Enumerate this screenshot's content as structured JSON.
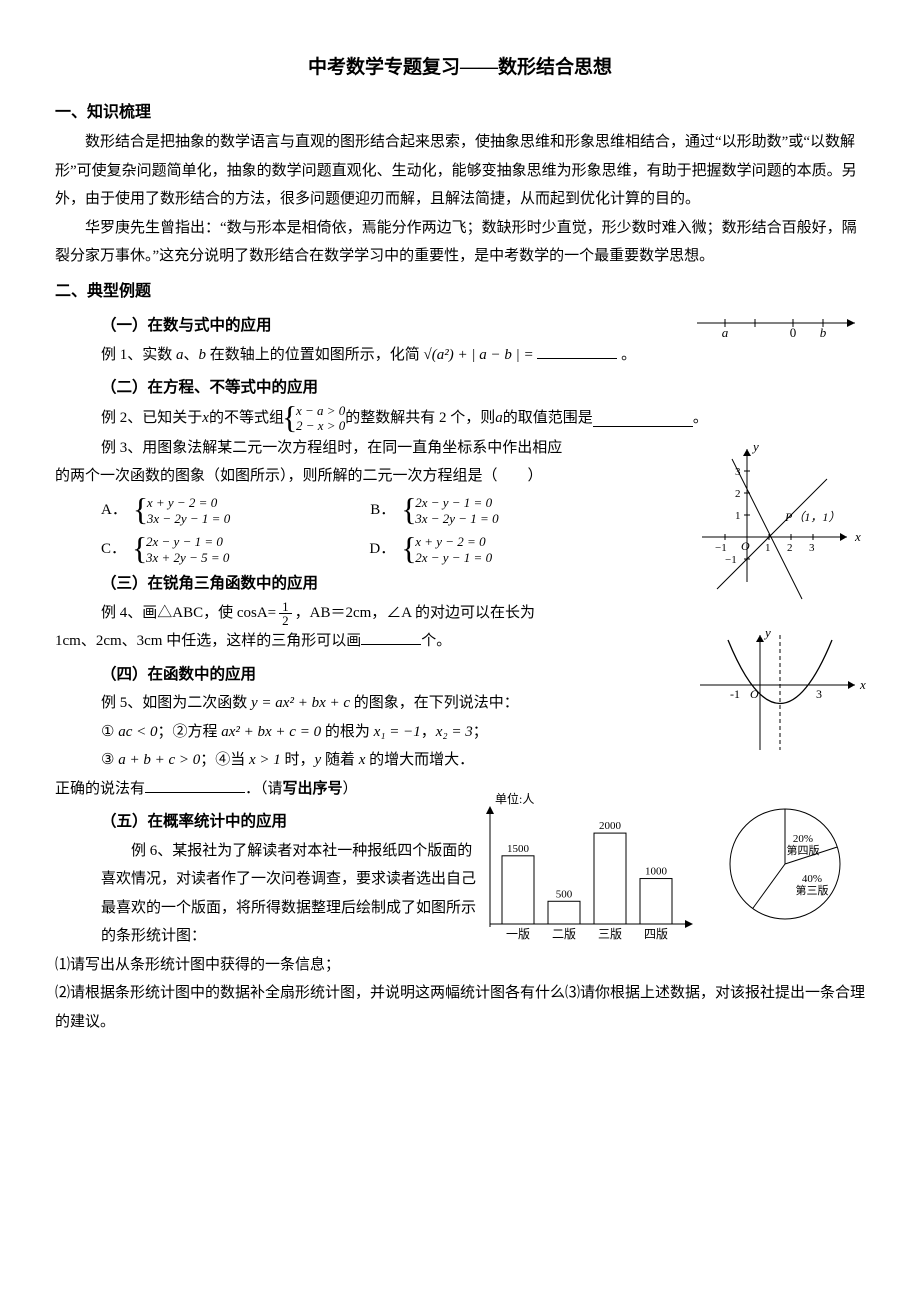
{
  "title": "中考数学专题复习——数形结合思想",
  "sections": {
    "s1": {
      "heading": "一、知识梳理",
      "p1": "数形结合是把抽象的数学语言与直观的图形结合起来思索，使抽象思维和形象思维相结合，通过“以形助数”或“以数解形”可使复杂问题简单化，抽象的数学问题直观化、生动化，能够变抽象思维为形象思维，有助于把握数学问题的本质。另外，由于使用了数形结合的方法，很多问题便迎刃而解，且解法简捷，从而起到优化计算的目的。",
      "p2": "华罗庚先生曾指出：“数与形本是相倚依，焉能分作两边飞；数缺形时少直觉，形少数时难入微；数形结合百般好，隔裂分家万事休。”这充分说明了数形结合在数学学习中的重要性，是中考数学的一个最重要数学思想。"
    },
    "s2_heading": "二、典型例题",
    "sub1": {
      "heading": "（一）在数与式中的应用",
      "ex1_prefix": "例 1、实数 ",
      "ex1_mid": "、",
      "ex1_text": " 在数轴上的位置如图所示，化简 ",
      "ex1_expr": "√(a²) + | a − b | =",
      "ex1_end": "。",
      "numberline": {
        "a_label": "a",
        "zero": "0",
        "b_label": "b"
      }
    },
    "sub2": {
      "heading": "（二）在方程、不等式中的应用",
      "ex2_pre": "例 2、已知关于 ",
      "ex2_mid": " 的不等式组 ",
      "ex2_sys1": "x − a > 0",
      "ex2_sys2": "2 − x > 0",
      "ex2_post1": " 的整数解共有 2 个，则 ",
      "ex2_post2": " 的取值范围是",
      "ex2_end": "。",
      "ex3_line": "例 3、用图象法解某二元一次方程组时，在同一直角坐标系中作出相应",
      "ex3_line2": "的两个一次函数的图象（如图所示），则所解的二元一次方程组是（　　）",
      "optA": "A．",
      "optA_s1": "x + y − 2 = 0",
      "optA_s2": "3x − 2y − 1 = 0",
      "optB": "B．",
      "optB_s1": "2x − y − 1 = 0",
      "optB_s2": "3x − 2y − 1 = 0",
      "optC": "C．",
      "optC_s1": "2x − y − 1 = 0",
      "optC_s2": "3x + 2y − 5 = 0",
      "optD": "D．",
      "optD_s1": "x + y − 2 = 0",
      "optD_s2": "2x − y − 1 = 0",
      "graph": {
        "axis_color": "#000",
        "y_lab": "y",
        "x_lab": "x",
        "P_label": "P（1，1）",
        "ticks_x": [
          "−1",
          "1",
          "2",
          "3"
        ],
        "ticks_y": [
          "−1",
          "1",
          "2",
          "3"
        ],
        "O": "O"
      }
    },
    "sub3": {
      "heading": "（三）在锐角三角函数中的应用",
      "ex4_a": "例 4、画△ABC，使 cosA= ",
      "ex4_frac_num": "1",
      "ex4_frac_den": "2",
      "ex4_b": "，AB＝2cm，∠A 的对边可以在长为",
      "ex4_line2_a": "1cm、2cm、3cm 中任选，这样的三角形可以画",
      "ex4_line2_b": "个。"
    },
    "sub4": {
      "heading": "（四）在函数中的应用",
      "ex5_a": "例 5、如图为二次函数 ",
      "ex5_expr": "y = ax² + bx + c",
      "ex5_b": " 的图象，在下列说法中：",
      "cond1_a": "① ",
      "cond1_expr": "ac < 0",
      "cond1_b": "；②方程 ",
      "cond1_expr2": "ax² + bx + c = 0",
      "cond1_c": " 的根为 ",
      "cond1_x1": "x₁ = −1",
      "cond1_d": "，",
      "cond1_x2": "x₂ = 3",
      "cond1_e": "；",
      "cond2_a": "③ ",
      "cond2_expr": "a + b + c > 0",
      "cond2_b": "；④当 ",
      "cond2_xgt": "x > 1",
      "cond2_c": " 时，",
      "cond2_d": " 随着 ",
      "cond2_e": " 的增大而增大．",
      "final_a": "正确的说法有",
      "final_b": "．（请",
      "final_bold": "写出序号",
      "final_c": "）",
      "parabola": {
        "x_lab": "x",
        "y_lab": "y",
        "x_ticks": [
          "-1",
          "3"
        ],
        "O": "O",
        "axis_color": "#000",
        "curve_color": "#000",
        "dash": "4,3"
      }
    },
    "sub5": {
      "heading": "（五）在概率统计中的应用",
      "ex6_p1": "例 6、某报社为了解读者对本社一种报纸四个版面的喜欢情况，对读者作了一次问卷调查，要求读者选出自己最喜欢的一个版面，将所得数据整理后绘制成了如图所示的条形统计图：",
      "q1": "⑴请写出从条形统计图中获得的一条信息；",
      "q2": "⑵请根据条形统计图中的数据补全扇形统计图，并说明这两幅统计图各有什么⑶请你根据上述数据，对该报社提出一条合理的建议。",
      "bar_chart": {
        "ylabel": "单位:人",
        "categories": [
          "一版",
          "二版",
          "三版",
          "四版"
        ],
        "values": [
          1500,
          500,
          2000,
          1000
        ],
        "value_labels": [
          "1500",
          "500",
          "2000",
          "1000"
        ],
        "bar_color": "#ffffff",
        "bar_border": "#000",
        "axis_color": "#000",
        "ymax": 2200
      },
      "pie_chart": {
        "slices": [
          {
            "label": "20%\n第四版",
            "pct": 20,
            "color": "#ffffff"
          },
          {
            "label": "40%\n第三版",
            "pct": 40,
            "color": "#ffffff"
          }
        ],
        "border": "#000"
      }
    }
  }
}
